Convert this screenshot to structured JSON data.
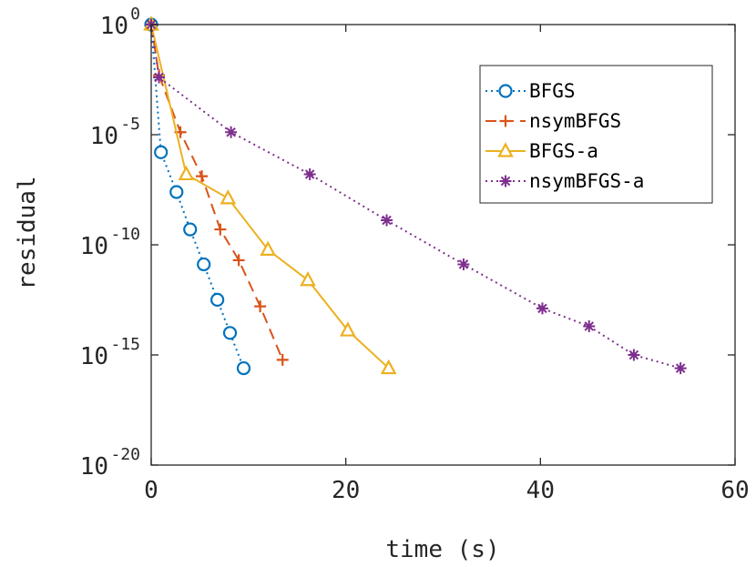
{
  "chart_data": {
    "type": "line",
    "xlabel": "time (s)",
    "ylabel": "residual",
    "xlim": [
      0,
      60
    ],
    "y_scale": "log",
    "ylim": [
      1e-20,
      1
    ],
    "x_ticks": [
      "0",
      "20",
      "40",
      "60"
    ],
    "y_ticks": [
      {
        "base": "10",
        "exp": "0"
      },
      {
        "base": "10",
        "exp": "-5"
      },
      {
        "base": "10",
        "exp": "-10"
      },
      {
        "base": "10",
        "exp": "-15"
      },
      {
        "base": "10",
        "exp": "-20"
      }
    ],
    "grid": false,
    "legend_position": "top-right",
    "series": [
      {
        "name": "BFGS",
        "color": "#0072BD",
        "line_style": "dotted",
        "marker": "circle",
        "x": [
          0,
          1.0,
          2.6,
          4.0,
          5.4,
          6.8,
          8.1,
          9.5
        ],
        "y": [
          1,
          1.6e-06,
          2.5e-08,
          5e-10,
          1.3e-11,
          3.2e-13,
          1e-14,
          2.5e-16
        ]
      },
      {
        "name": "nsymBFGS",
        "color": "#D95319",
        "line_style": "dashed",
        "marker": "plus",
        "x": [
          0,
          0.8,
          3.0,
          5.2,
          7.1,
          9.0,
          11.2,
          13.5
        ],
        "y": [
          1,
          0.005,
          1.3e-05,
          1.3e-07,
          5e-10,
          2e-11,
          1.6e-13,
          6e-16
        ]
      },
      {
        "name": "BFGS-a",
        "color": "#EDB120",
        "line_style": "solid",
        "marker": "triangle",
        "x": [
          0,
          3.6,
          7.9,
          12.0,
          16.1,
          20.2,
          24.4
        ],
        "y": [
          1,
          1.6e-07,
          1.3e-08,
          6e-11,
          2.5e-12,
          1.3e-14,
          2.5e-16
        ]
      },
      {
        "name": "nsymBFGS-a",
        "color": "#7E2F8E",
        "line_style": "dotted",
        "marker": "asterisk",
        "x": [
          0,
          0.8,
          8.2,
          16.3,
          24.2,
          32.1,
          40.2,
          45.0,
          49.6,
          54.4
        ],
        "y": [
          1,
          0.004,
          1.3e-05,
          1.6e-07,
          1.3e-09,
          1.3e-11,
          1.3e-13,
          2e-14,
          1e-15,
          2.5e-16
        ]
      }
    ]
  }
}
